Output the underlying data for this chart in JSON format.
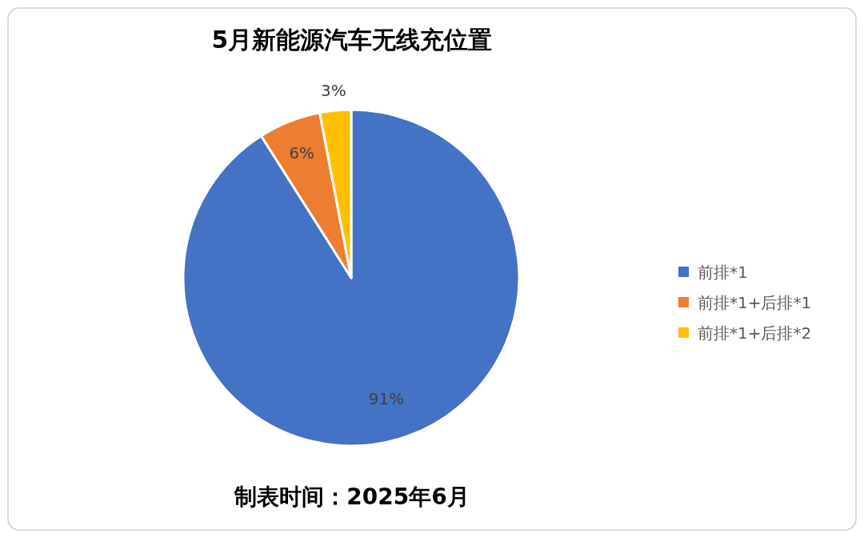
{
  "chart_data": {
    "type": "pie",
    "title": "5月新能源汽车无线充位置",
    "categories": [
      "前排*1",
      "前排*1+后排*1",
      "前排*1+后排*2"
    ],
    "values": [
      91,
      6,
      3
    ],
    "colors": [
      "#4472c4",
      "#ed7d31",
      "#ffc000"
    ],
    "value_labels": [
      "91%",
      "6%",
      "3%"
    ],
    "legend": "right",
    "annotations": [
      "制表时间：2025年6月"
    ]
  }
}
